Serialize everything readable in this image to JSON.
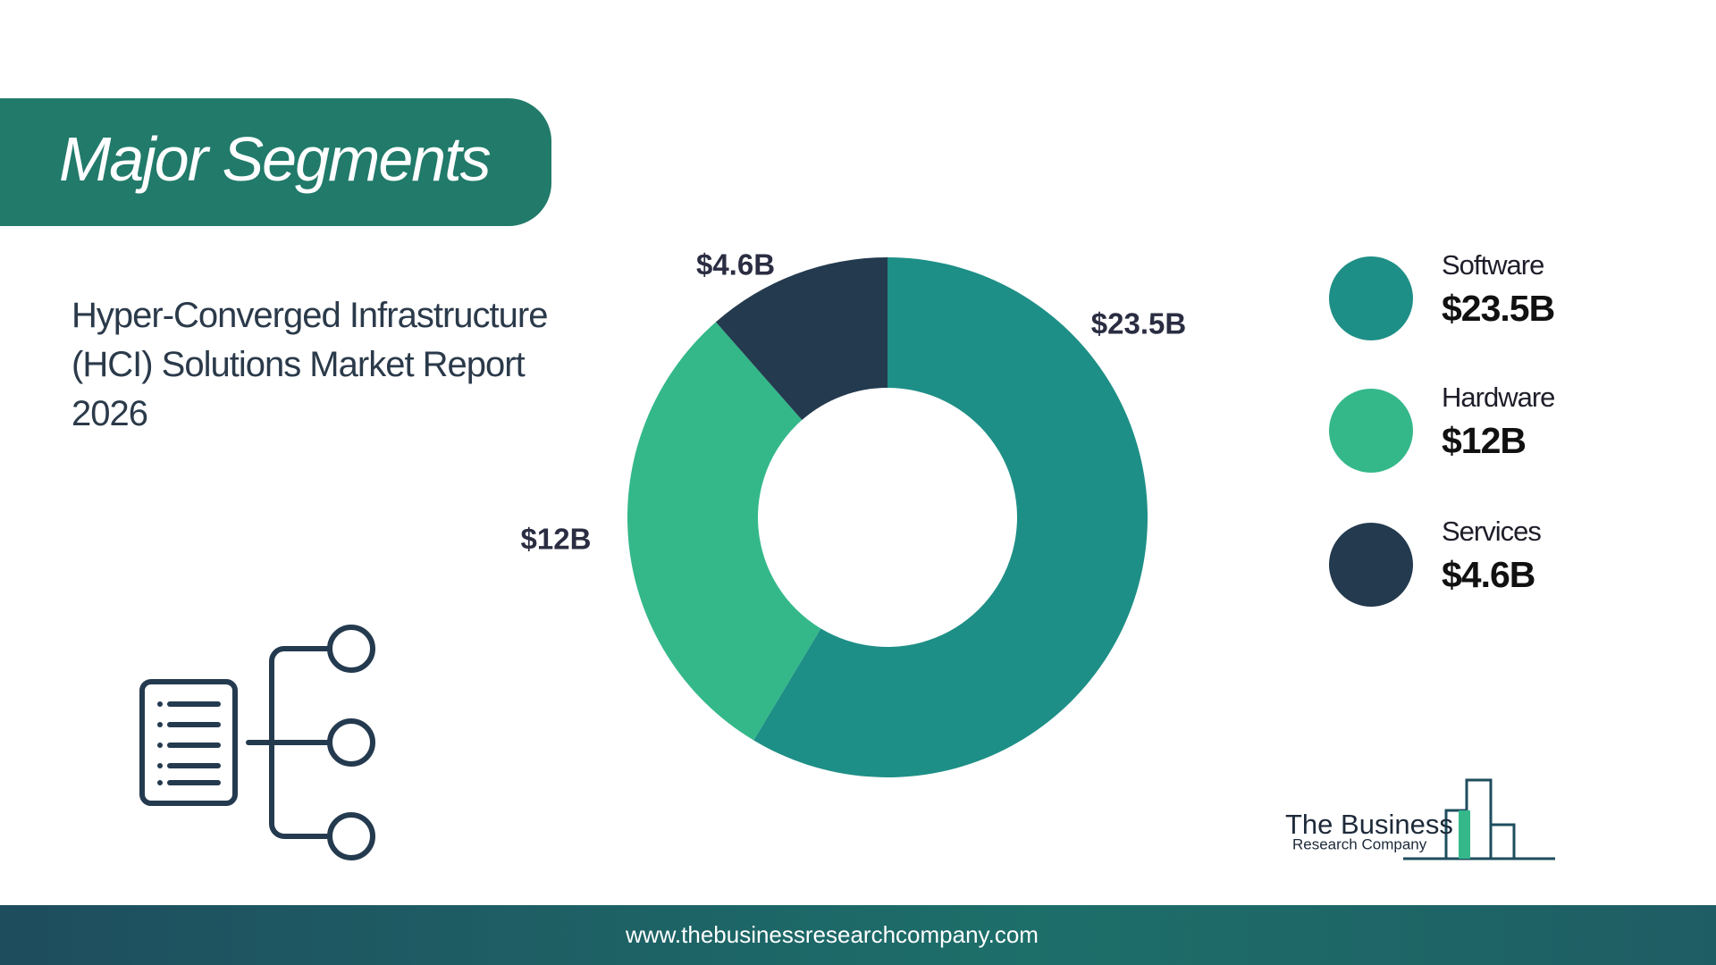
{
  "header": {
    "title": "Major Segments",
    "subtitle": "Hyper-Converged Infrastructure (HCI) Solutions Market Report 2026"
  },
  "chart_data": {
    "type": "pie",
    "donut": true,
    "categories": [
      "Software",
      "Hardware",
      "Services"
    ],
    "values": [
      23.5,
      12,
      4.6
    ],
    "value_labels": [
      "$23.5B",
      "$12B",
      "$4.6B"
    ],
    "colors": [
      "#1e8f86",
      "#34b88a",
      "#243a4f"
    ]
  },
  "logo": {
    "line1": "The Business",
    "line2": "Research Company"
  },
  "footer": {
    "url": "www.thebusinessresearchcompany.com"
  }
}
